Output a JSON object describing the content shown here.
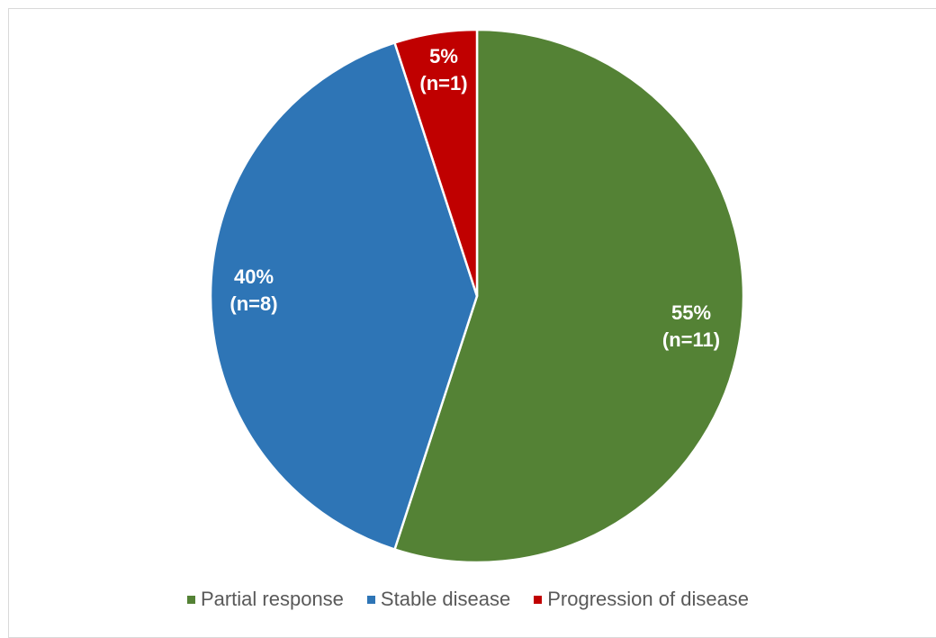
{
  "chart_data": {
    "type": "pie",
    "title": "",
    "slices": [
      {
        "name": "Partial response",
        "value": 55,
        "count": 11,
        "percent_label": "55%",
        "count_label": "(n=11)",
        "color": "#548235"
      },
      {
        "name": "Stable disease",
        "value": 40,
        "count": 8,
        "percent_label": "40%",
        "count_label": "(n=8)",
        "color": "#2e75b6"
      },
      {
        "name": "Progression of disease",
        "value": 5,
        "count": 1,
        "percent_label": "5%",
        "count_label": "(n=1)",
        "color": "#c00000"
      }
    ],
    "start_angle_deg": 0,
    "direction": "clockwise",
    "legend_position": "bottom"
  }
}
